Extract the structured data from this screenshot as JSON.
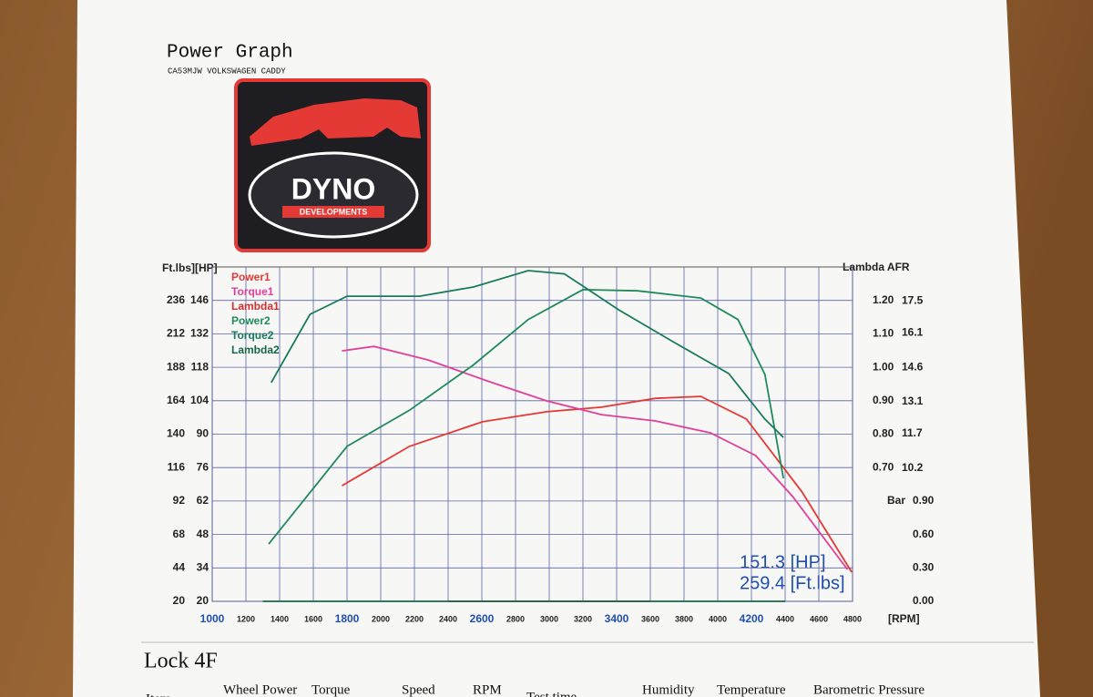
{
  "header": {
    "title": "Power Graph",
    "subtitle": "CA53MJW VOLKSWAGEN CADDY"
  },
  "logo": {
    "text": "DYNO",
    "subtext": "DEVELOPMENTS"
  },
  "chart_data": {
    "type": "line",
    "left_axis_title": "Ft.lbs][HP]",
    "right_axis_title": "Lambda AFR",
    "xlabel": "[RPM]",
    "xlim": [
      1000,
      4800
    ],
    "xticks": [
      1000,
      1200,
      1400,
      1600,
      1800,
      2000,
      2200,
      2400,
      2600,
      2800,
      3000,
      3200,
      3400,
      3600,
      3800,
      4000,
      4200,
      4400,
      4600,
      4800
    ],
    "grid": true,
    "axes": [
      {
        "lim": [
          20,
          260
        ],
        "ticks": [
          20,
          44,
          68,
          92,
          116,
          140,
          164,
          188,
          212,
          236
        ]
      },
      {
        "lim": [
          20,
          160
        ],
        "ticks": [
          20,
          34,
          48,
          62,
          76,
          90,
          104,
          118,
          132,
          146
        ]
      },
      {
        "lim": [
          0.3,
          1.3
        ],
        "ticks": [
          {
            "value": 0.7,
            "label": "0.70"
          },
          {
            "value": 0.8,
            "label": "0.80"
          },
          {
            "value": 0.9,
            "label": "0.90"
          },
          {
            "value": 1.0,
            "label": "1.00"
          },
          {
            "value": 1.1,
            "label": "1.10"
          },
          {
            "value": 1.2,
            "label": "1.20"
          }
        ]
      },
      {
        "lim": [
          4.38,
          18.98
        ],
        "ticks": [
          10.2,
          11.7,
          13.1,
          14.6,
          16.1,
          17.5
        ]
      },
      {
        "label": "Bar",
        "color": "#e53935",
        "lim": [
          0,
          3
        ],
        "ticks": [
          {
            "value": 0,
            "label": "0.00"
          },
          {
            "value": 0.3,
            "label": "0.30"
          },
          {
            "value": 0.6,
            "label": "0.60"
          },
          {
            "value": 0.9,
            "label": "0.90"
          }
        ]
      }
    ],
    "series": [
      {
        "name": "Power1",
        "color": "#e53935",
        "axis": 1,
        "x": [
          1770,
          2170,
          2605,
          2985,
          3310,
          3630,
          3900,
          4170,
          4500,
          4795
        ],
        "values": [
          68.4,
          84.9,
          95.2,
          99.4,
          101.3,
          105,
          105.8,
          96.3,
          65.8,
          32.2
        ]
      },
      {
        "name": "Torque1",
        "color": "#e0409a",
        "axis": 0,
        "x": [
          1770,
          1960,
          2280,
          2660,
          2985,
          3310,
          3630,
          3955,
          4225,
          4445,
          4770
        ],
        "values": [
          199.8,
          203,
          193.3,
          177,
          163.9,
          154,
          149.5,
          141,
          124.6,
          95.2,
          42.9
        ]
      },
      {
        "name": "Lambda1",
        "color": "#d32f2f",
        "axis": 2,
        "x": [
          2400,
          3600
        ],
        "values": [
          0.3,
          0.3
        ]
      },
      {
        "name": "Power2",
        "color": "#1f8a5c",
        "axis": 1,
        "x": [
          1335,
          1800,
          2170,
          2550,
          2875,
          3200,
          3525,
          3900,
          4120,
          4280,
          4390
        ],
        "values": [
          44,
          84.9,
          100,
          119,
          138,
          150.5,
          150,
          147,
          138,
          115,
          71.5
        ]
      },
      {
        "name": "Torque2",
        "color": "#1a7a5e",
        "axis": 0,
        "x": [
          1350,
          1580,
          1800,
          2230,
          2550,
          2875,
          3090,
          3415,
          3740,
          4065,
          4280,
          4390
        ],
        "values": [
          177,
          226,
          239,
          239,
          245.6,
          257.4,
          255,
          229,
          206,
          183.5,
          150.8,
          137.7
        ]
      },
      {
        "name": "Lambda2",
        "color": "#16664a",
        "axis": 2,
        "x": [
          1300,
          4400
        ],
        "values": [
          0.3,
          0.3
        ]
      }
    ],
    "annotations": [
      "151.3 [HP]",
      "259.4 [Ft.lbs]"
    ]
  },
  "footer": {
    "title": "Lock 4F",
    "columns": [
      "Item",
      "Wheel Power",
      "Torque",
      "Speed",
      "RPM",
      "Test time",
      "Humidity",
      "Temperature",
      "Barometric Pressure"
    ]
  }
}
